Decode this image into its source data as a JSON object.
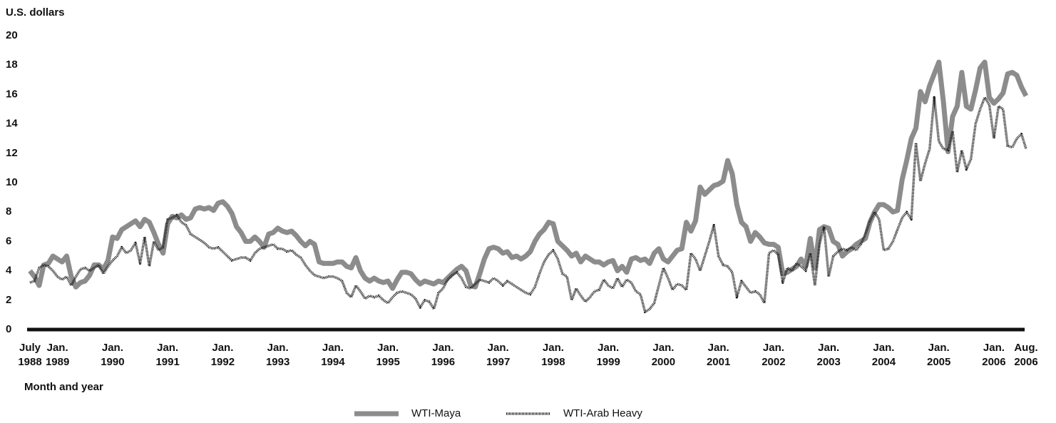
{
  "chart_data": {
    "type": "line",
    "y_axis_label": "U.S. dollars",
    "x_axis_label": "Month and year",
    "ylim": [
      0,
      20
    ],
    "yticks": [
      0,
      2,
      4,
      6,
      8,
      10,
      12,
      14,
      16,
      18,
      20
    ],
    "grid": false,
    "legend": "bottom",
    "categories": [
      "July 1988",
      null,
      null,
      null,
      null,
      null,
      "Jan. 1989",
      null,
      null,
      null,
      null,
      null,
      null,
      null,
      null,
      null,
      null,
      null,
      "Jan. 1990",
      null,
      null,
      null,
      null,
      null,
      null,
      null,
      null,
      null,
      null,
      null,
      "Jan. 1991",
      null,
      null,
      null,
      null,
      null,
      null,
      null,
      null,
      null,
      null,
      null,
      "Jan. 1992",
      null,
      null,
      null,
      null,
      null,
      null,
      null,
      null,
      null,
      null,
      null,
      "Jan. 1993",
      null,
      null,
      null,
      null,
      null,
      null,
      null,
      null,
      null,
      null,
      null,
      "Jan. 1994",
      null,
      null,
      null,
      null,
      null,
      null,
      null,
      null,
      null,
      null,
      null,
      "Jan. 1995",
      null,
      null,
      null,
      null,
      null,
      null,
      null,
      null,
      null,
      null,
      null,
      "Jan. 1996",
      null,
      null,
      null,
      null,
      null,
      null,
      null,
      null,
      null,
      null,
      null,
      "Jan. 1997",
      null,
      null,
      null,
      null,
      null,
      null,
      null,
      null,
      null,
      null,
      null,
      "Jan. 1998",
      null,
      null,
      null,
      null,
      null,
      null,
      null,
      null,
      null,
      null,
      null,
      "Jan. 1999",
      null,
      null,
      null,
      null,
      null,
      null,
      null,
      null,
      null,
      null,
      null,
      "Jan. 2000",
      null,
      null,
      null,
      null,
      null,
      null,
      null,
      null,
      null,
      null,
      null,
      "Jan. 2001",
      null,
      null,
      null,
      null,
      null,
      null,
      null,
      null,
      null,
      null,
      null,
      "Jan. 2002",
      null,
      null,
      null,
      null,
      null,
      null,
      null,
      null,
      null,
      null,
      null,
      "Jan. 2003",
      null,
      null,
      null,
      null,
      null,
      null,
      null,
      null,
      null,
      null,
      null,
      "Jan. 2004",
      null,
      null,
      null,
      null,
      null,
      null,
      null,
      null,
      null,
      null,
      null,
      "Jan. 2005",
      null,
      null,
      null,
      null,
      null,
      null,
      null,
      null,
      null,
      null,
      null,
      "Jan. 2006",
      null,
      null,
      null,
      null,
      null,
      null,
      "Aug. 2006"
    ],
    "series": [
      {
        "name": "WTI-Maya",
        "color": "#8c8c8c",
        "values": [
          4.0,
          3.6,
          3.0,
          4.4,
          4.5,
          5.0,
          4.8,
          4.6,
          5.0,
          3.6,
          2.9,
          3.2,
          3.3,
          3.7,
          4.4,
          4.4,
          4.1,
          4.7,
          6.3,
          6.2,
          6.8,
          7.0,
          7.2,
          7.4,
          7.0,
          7.5,
          7.3,
          6.6,
          5.8,
          5.2,
          7.2,
          7.7,
          7.6,
          7.8,
          7.5,
          7.6,
          8.2,
          8.3,
          8.2,
          8.3,
          8.1,
          8.6,
          8.7,
          8.4,
          7.9,
          7.0,
          6.6,
          6.0,
          6.0,
          6.3,
          6.0,
          5.6,
          6.5,
          6.6,
          6.9,
          6.7,
          6.6,
          6.7,
          6.4,
          6.0,
          5.7,
          6.0,
          5.8,
          4.6,
          4.5,
          4.5,
          4.5,
          4.6,
          4.6,
          4.3,
          4.2,
          4.9,
          4.0,
          3.5,
          3.3,
          3.5,
          3.3,
          3.2,
          3.3,
          2.8,
          3.4,
          3.9,
          3.9,
          3.8,
          3.4,
          3.1,
          3.3,
          3.2,
          3.1,
          3.3,
          3.2,
          3.5,
          3.8,
          4.1,
          4.3,
          4.0,
          3.0,
          2.9,
          3.8,
          4.8,
          5.5,
          5.6,
          5.5,
          5.2,
          5.3,
          4.9,
          5.0,
          4.8,
          5.0,
          5.3,
          6.0,
          6.5,
          6.8,
          7.3,
          7.2,
          6.0,
          5.7,
          5.4,
          5.0,
          5.2,
          4.6,
          5.0,
          4.8,
          4.6,
          4.6,
          4.4,
          4.6,
          4.7,
          4.0,
          4.3,
          3.9,
          4.8,
          4.9,
          4.7,
          4.8,
          4.5,
          5.2,
          5.5,
          4.8,
          4.6,
          5.0,
          5.4,
          5.5,
          7.3,
          6.7,
          7.4,
          9.7,
          9.2,
          9.5,
          9.8,
          9.9,
          10.1,
          11.5,
          10.6,
          8.5,
          7.3,
          7.0,
          6.0,
          6.6,
          6.3,
          5.9,
          5.8,
          5.8,
          5.6,
          3.8,
          3.9,
          4.1,
          4.3,
          4.8,
          4.3,
          6.2,
          4.2,
          6.8,
          7.0,
          6.9,
          6.0,
          5.8,
          5.0,
          5.3,
          5.5,
          5.8,
          6.0,
          6.2,
          7.3,
          8.0,
          8.5,
          8.5,
          8.3,
          8.0,
          8.1,
          10.2,
          11.5,
          13.0,
          13.7,
          16.2,
          15.5,
          16.6,
          17.4,
          18.2,
          15.5,
          12.1,
          14.5,
          15.2,
          17.5,
          15.2,
          15.0,
          16.3,
          17.8,
          18.2,
          15.8,
          15.4,
          15.7,
          16.1,
          17.4,
          17.5,
          17.3,
          16.5,
          15.9
        ]
      },
      {
        "name": "WTI-Arab Heavy",
        "color": "#111111",
        "values": [
          3.2,
          3.3,
          4.2,
          4.4,
          4.3,
          4.0,
          3.6,
          3.4,
          3.6,
          3.0,
          3.6,
          4.1,
          4.2,
          4.0,
          4.2,
          4.4,
          3.8,
          4.3,
          4.7,
          5.0,
          5.6,
          5.2,
          5.4,
          5.9,
          4.5,
          6.3,
          4.3,
          6.0,
          5.4,
          5.6,
          7.5,
          7.6,
          7.8,
          7.3,
          7.1,
          6.5,
          6.3,
          6.1,
          5.9,
          5.6,
          5.5,
          5.6,
          5.3,
          5.0,
          4.7,
          4.8,
          4.9,
          4.9,
          4.7,
          5.2,
          5.5,
          5.6,
          5.7,
          5.8,
          5.5,
          5.5,
          5.3,
          5.4,
          5.1,
          4.9,
          4.4,
          4.0,
          3.7,
          3.6,
          3.5,
          3.6,
          3.6,
          3.5,
          3.3,
          2.5,
          2.2,
          3.0,
          2.6,
          2.1,
          2.3,
          2.2,
          2.3,
          2.0,
          1.8,
          2.2,
          2.5,
          2.6,
          2.5,
          2.4,
          2.1,
          1.5,
          2.0,
          1.9,
          1.4,
          2.5,
          2.8,
          3.4,
          3.7,
          3.9,
          3.5,
          2.9,
          2.8,
          3.1,
          3.4,
          3.3,
          3.2,
          3.5,
          3.3,
          3.0,
          3.3,
          3.1,
          2.9,
          2.7,
          2.5,
          2.4,
          2.9,
          3.8,
          4.6,
          5.1,
          5.4,
          4.8,
          3.8,
          3.6,
          2.0,
          2.8,
          2.3,
          1.9,
          2.2,
          2.6,
          2.7,
          3.4,
          3.0,
          2.8,
          3.5,
          2.9,
          3.4,
          3.2,
          2.6,
          2.4,
          1.2,
          1.4,
          1.8,
          3.0,
          4.2,
          3.5,
          2.7,
          3.1,
          3.0,
          2.7,
          5.2,
          4.8,
          4.0,
          5.0,
          6.0,
          7.1,
          5.0,
          4.4,
          4.3,
          3.9,
          2.2,
          3.3,
          2.9,
          2.5,
          2.6,
          2.4,
          1.8,
          5.2,
          5.4,
          5.1,
          3.2,
          4.2,
          4.0,
          4.5,
          4.3,
          4.0,
          5.2,
          3.0,
          5.8,
          7.0,
          3.6,
          5.0,
          5.3,
          5.5,
          5.4,
          5.6,
          5.4,
          5.8,
          6.5,
          7.4,
          8.0,
          7.5,
          5.4,
          5.5,
          6.0,
          6.8,
          7.6,
          8.0,
          7.5,
          12.7,
          10.1,
          11.3,
          12.3,
          15.8,
          12.8,
          12.3,
          12.2,
          13.5,
          10.7,
          12.2,
          10.9,
          11.6,
          14.0,
          15.0,
          15.8,
          15.3,
          13.0,
          15.2,
          15.0,
          12.5,
          12.4,
          13.0,
          13.3,
          12.3
        ]
      }
    ]
  }
}
